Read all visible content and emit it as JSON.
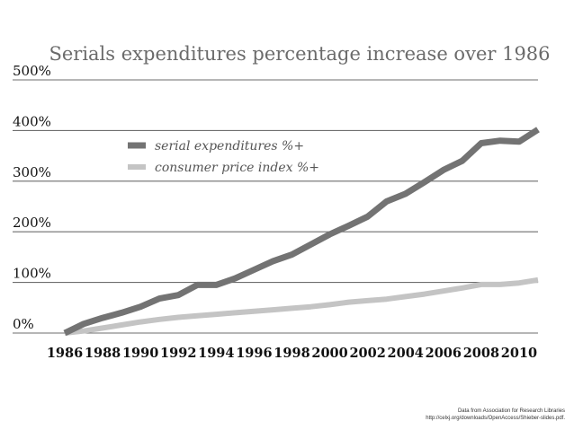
{
  "chart_data": {
    "type": "line",
    "title": "Serials expenditures percentage increase over 1986",
    "xlabel": "",
    "ylabel": "",
    "x": [
      1986,
      1987,
      1988,
      1989,
      1990,
      1991,
      1992,
      1993,
      1994,
      1995,
      1996,
      1997,
      1998,
      1999,
      2000,
      2001,
      2002,
      2003,
      2004,
      2005,
      2006,
      2007,
      2008,
      2009,
      2010,
      2011
    ],
    "xlim": [
      1986,
      2011
    ],
    "ylim": [
      0,
      500
    ],
    "y_ticks": [
      0,
      100,
      200,
      300,
      400,
      500
    ],
    "y_tick_labels": [
      "0%",
      "100%",
      "200%",
      "300%",
      "400%",
      "500%"
    ],
    "x_ticks": [
      1986,
      1988,
      1990,
      1992,
      1994,
      1996,
      1998,
      2000,
      2002,
      2004,
      2006,
      2008,
      2010
    ],
    "x_tick_labels": [
      "1986",
      "1988",
      "1990",
      "1992",
      "1994",
      "1996",
      "1998",
      "2000",
      "2002",
      "2004",
      "2006",
      "2008",
      "2010"
    ],
    "grid": "horizontal",
    "legend_position": "top-left",
    "series": [
      {
        "name": "serial expenditures %+",
        "color": "#737373",
        "values": [
          0,
          18,
          30,
          40,
          52,
          68,
          75,
          95,
          95,
          108,
          125,
          142,
          155,
          175,
          195,
          212,
          230,
          260,
          275,
          298,
          322,
          340,
          375,
          380,
          378,
          402
        ]
      },
      {
        "name": "consumer price index %+",
        "color": "#c4c4c4",
        "values": [
          0,
          4,
          10,
          16,
          22,
          27,
          31,
          34,
          37,
          40,
          43,
          46,
          49,
          52,
          56,
          61,
          64,
          67,
          72,
          77,
          83,
          89,
          96,
          96,
          99,
          105
        ]
      }
    ]
  },
  "source": {
    "line1": "Data from Association for Research Libraries",
    "line2": "http://celxj.org/downloads/OpenAccess/Shieber-slides.pdf."
  }
}
